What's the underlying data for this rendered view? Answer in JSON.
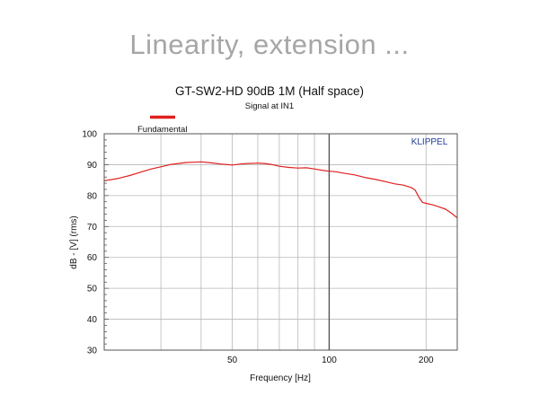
{
  "slide": {
    "title": "Linearity, extension ..."
  },
  "colors": {
    "series": "#e02020",
    "brand": "#1f3a93",
    "grid": "#b8b8b8",
    "axis": "#555555"
  },
  "chart_data": {
    "type": "line",
    "title": "GT-SW2-HD  90dB 1M (Half space)",
    "subtitle": "Signal at IN1",
    "xlabel": "Frequency [Hz]",
    "ylabel": "dB - [V]  (rms)",
    "brand": "KLIPPEL",
    "x_scale": "log",
    "xlim": [
      20,
      250
    ],
    "ylim": [
      30,
      100
    ],
    "x_ticks": [
      50,
      100,
      200
    ],
    "y_ticks": [
      30,
      40,
      50,
      60,
      70,
      80,
      90,
      100
    ],
    "legend_position": "top-left",
    "grid": true,
    "series": [
      {
        "name": "Fundamental",
        "color": "#e02020",
        "x": [
          20,
          22,
          24,
          26,
          28,
          30,
          32,
          34,
          36,
          38,
          40,
          43,
          46,
          50,
          53,
          56,
          60,
          63,
          66,
          70,
          75,
          80,
          85,
          90,
          95,
          100,
          105,
          110,
          120,
          130,
          140,
          150,
          160,
          170,
          180,
          185,
          190,
          195,
          200,
          210,
          220,
          230,
          240,
          250
        ],
        "y": [
          84.8,
          85.5,
          86.5,
          87.6,
          88.6,
          89.3,
          90.0,
          90.4,
          90.7,
          90.8,
          90.9,
          90.6,
          90.2,
          89.9,
          90.2,
          90.4,
          90.5,
          90.4,
          90.1,
          89.5,
          89.1,
          88.9,
          89.0,
          88.6,
          88.2,
          87.9,
          87.7,
          87.3,
          86.7,
          85.8,
          85.2,
          84.5,
          83.8,
          83.4,
          82.6,
          81.8,
          79.5,
          77.8,
          77.5,
          77.0,
          76.3,
          75.6,
          74.3,
          72.8
        ]
      }
    ]
  }
}
